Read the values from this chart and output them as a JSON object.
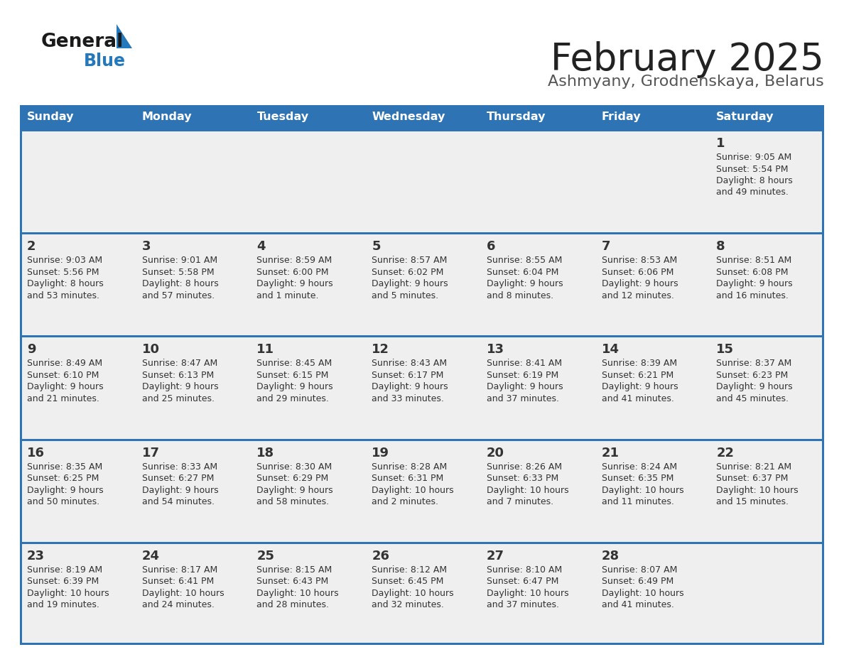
{
  "title": "February 2025",
  "subtitle": "Ashmyany, Grodnenskaya, Belarus",
  "days_of_week": [
    "Sunday",
    "Monday",
    "Tuesday",
    "Wednesday",
    "Thursday",
    "Friday",
    "Saturday"
  ],
  "header_bg": "#2e74b5",
  "header_text_color": "#ffffff",
  "cell_bg": "#efefef",
  "cell_bg_white": "#ffffff",
  "separator_color": "#2e74b5",
  "text_color": "#333333",
  "title_color": "#222222",
  "subtitle_color": "#555555",
  "logo_general_color": "#1a1a1a",
  "logo_blue_color": "#2479bd",
  "weeks": [
    [
      {
        "day": null,
        "info": null
      },
      {
        "day": null,
        "info": null
      },
      {
        "day": null,
        "info": null
      },
      {
        "day": null,
        "info": null
      },
      {
        "day": null,
        "info": null
      },
      {
        "day": null,
        "info": null
      },
      {
        "day": 1,
        "info": "Sunrise: 9:05 AM\nSunset: 5:54 PM\nDaylight: 8 hours\nand 49 minutes."
      }
    ],
    [
      {
        "day": 2,
        "info": "Sunrise: 9:03 AM\nSunset: 5:56 PM\nDaylight: 8 hours\nand 53 minutes."
      },
      {
        "day": 3,
        "info": "Sunrise: 9:01 AM\nSunset: 5:58 PM\nDaylight: 8 hours\nand 57 minutes."
      },
      {
        "day": 4,
        "info": "Sunrise: 8:59 AM\nSunset: 6:00 PM\nDaylight: 9 hours\nand 1 minute."
      },
      {
        "day": 5,
        "info": "Sunrise: 8:57 AM\nSunset: 6:02 PM\nDaylight: 9 hours\nand 5 minutes."
      },
      {
        "day": 6,
        "info": "Sunrise: 8:55 AM\nSunset: 6:04 PM\nDaylight: 9 hours\nand 8 minutes."
      },
      {
        "day": 7,
        "info": "Sunrise: 8:53 AM\nSunset: 6:06 PM\nDaylight: 9 hours\nand 12 minutes."
      },
      {
        "day": 8,
        "info": "Sunrise: 8:51 AM\nSunset: 6:08 PM\nDaylight: 9 hours\nand 16 minutes."
      }
    ],
    [
      {
        "day": 9,
        "info": "Sunrise: 8:49 AM\nSunset: 6:10 PM\nDaylight: 9 hours\nand 21 minutes."
      },
      {
        "day": 10,
        "info": "Sunrise: 8:47 AM\nSunset: 6:13 PM\nDaylight: 9 hours\nand 25 minutes."
      },
      {
        "day": 11,
        "info": "Sunrise: 8:45 AM\nSunset: 6:15 PM\nDaylight: 9 hours\nand 29 minutes."
      },
      {
        "day": 12,
        "info": "Sunrise: 8:43 AM\nSunset: 6:17 PM\nDaylight: 9 hours\nand 33 minutes."
      },
      {
        "day": 13,
        "info": "Sunrise: 8:41 AM\nSunset: 6:19 PM\nDaylight: 9 hours\nand 37 minutes."
      },
      {
        "day": 14,
        "info": "Sunrise: 8:39 AM\nSunset: 6:21 PM\nDaylight: 9 hours\nand 41 minutes."
      },
      {
        "day": 15,
        "info": "Sunrise: 8:37 AM\nSunset: 6:23 PM\nDaylight: 9 hours\nand 45 minutes."
      }
    ],
    [
      {
        "day": 16,
        "info": "Sunrise: 8:35 AM\nSunset: 6:25 PM\nDaylight: 9 hours\nand 50 minutes."
      },
      {
        "day": 17,
        "info": "Sunrise: 8:33 AM\nSunset: 6:27 PM\nDaylight: 9 hours\nand 54 minutes."
      },
      {
        "day": 18,
        "info": "Sunrise: 8:30 AM\nSunset: 6:29 PM\nDaylight: 9 hours\nand 58 minutes."
      },
      {
        "day": 19,
        "info": "Sunrise: 8:28 AM\nSunset: 6:31 PM\nDaylight: 10 hours\nand 2 minutes."
      },
      {
        "day": 20,
        "info": "Sunrise: 8:26 AM\nSunset: 6:33 PM\nDaylight: 10 hours\nand 7 minutes."
      },
      {
        "day": 21,
        "info": "Sunrise: 8:24 AM\nSunset: 6:35 PM\nDaylight: 10 hours\nand 11 minutes."
      },
      {
        "day": 22,
        "info": "Sunrise: 8:21 AM\nSunset: 6:37 PM\nDaylight: 10 hours\nand 15 minutes."
      }
    ],
    [
      {
        "day": 23,
        "info": "Sunrise: 8:19 AM\nSunset: 6:39 PM\nDaylight: 10 hours\nand 19 minutes."
      },
      {
        "day": 24,
        "info": "Sunrise: 8:17 AM\nSunset: 6:41 PM\nDaylight: 10 hours\nand 24 minutes."
      },
      {
        "day": 25,
        "info": "Sunrise: 8:15 AM\nSunset: 6:43 PM\nDaylight: 10 hours\nand 28 minutes."
      },
      {
        "day": 26,
        "info": "Sunrise: 8:12 AM\nSunset: 6:45 PM\nDaylight: 10 hours\nand 32 minutes."
      },
      {
        "day": 27,
        "info": "Sunrise: 8:10 AM\nSunset: 6:47 PM\nDaylight: 10 hours\nand 37 minutes."
      },
      {
        "day": 28,
        "info": "Sunrise: 8:07 AM\nSunset: 6:49 PM\nDaylight: 10 hours\nand 41 minutes."
      },
      {
        "day": null,
        "info": null
      }
    ]
  ]
}
